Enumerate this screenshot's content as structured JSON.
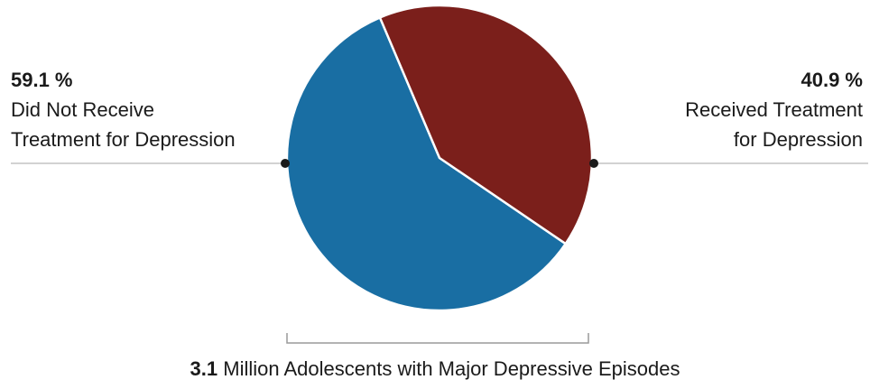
{
  "chart_data": {
    "type": "pie",
    "slices": [
      {
        "label_line1": "Did Not Receive",
        "label_line2": "Treatment for Depression",
        "value": 59.1,
        "value_text": "59.1 %",
        "color": "#196ea3"
      },
      {
        "label_line1": "Received Treatment",
        "label_line2": "for Depression",
        "value": 40.9,
        "value_text": "40.9 %",
        "color": "#7b1f1b"
      }
    ],
    "total": {
      "number": "3.1",
      "text": " Million Adolescents with Major Depressive Episodes"
    }
  }
}
